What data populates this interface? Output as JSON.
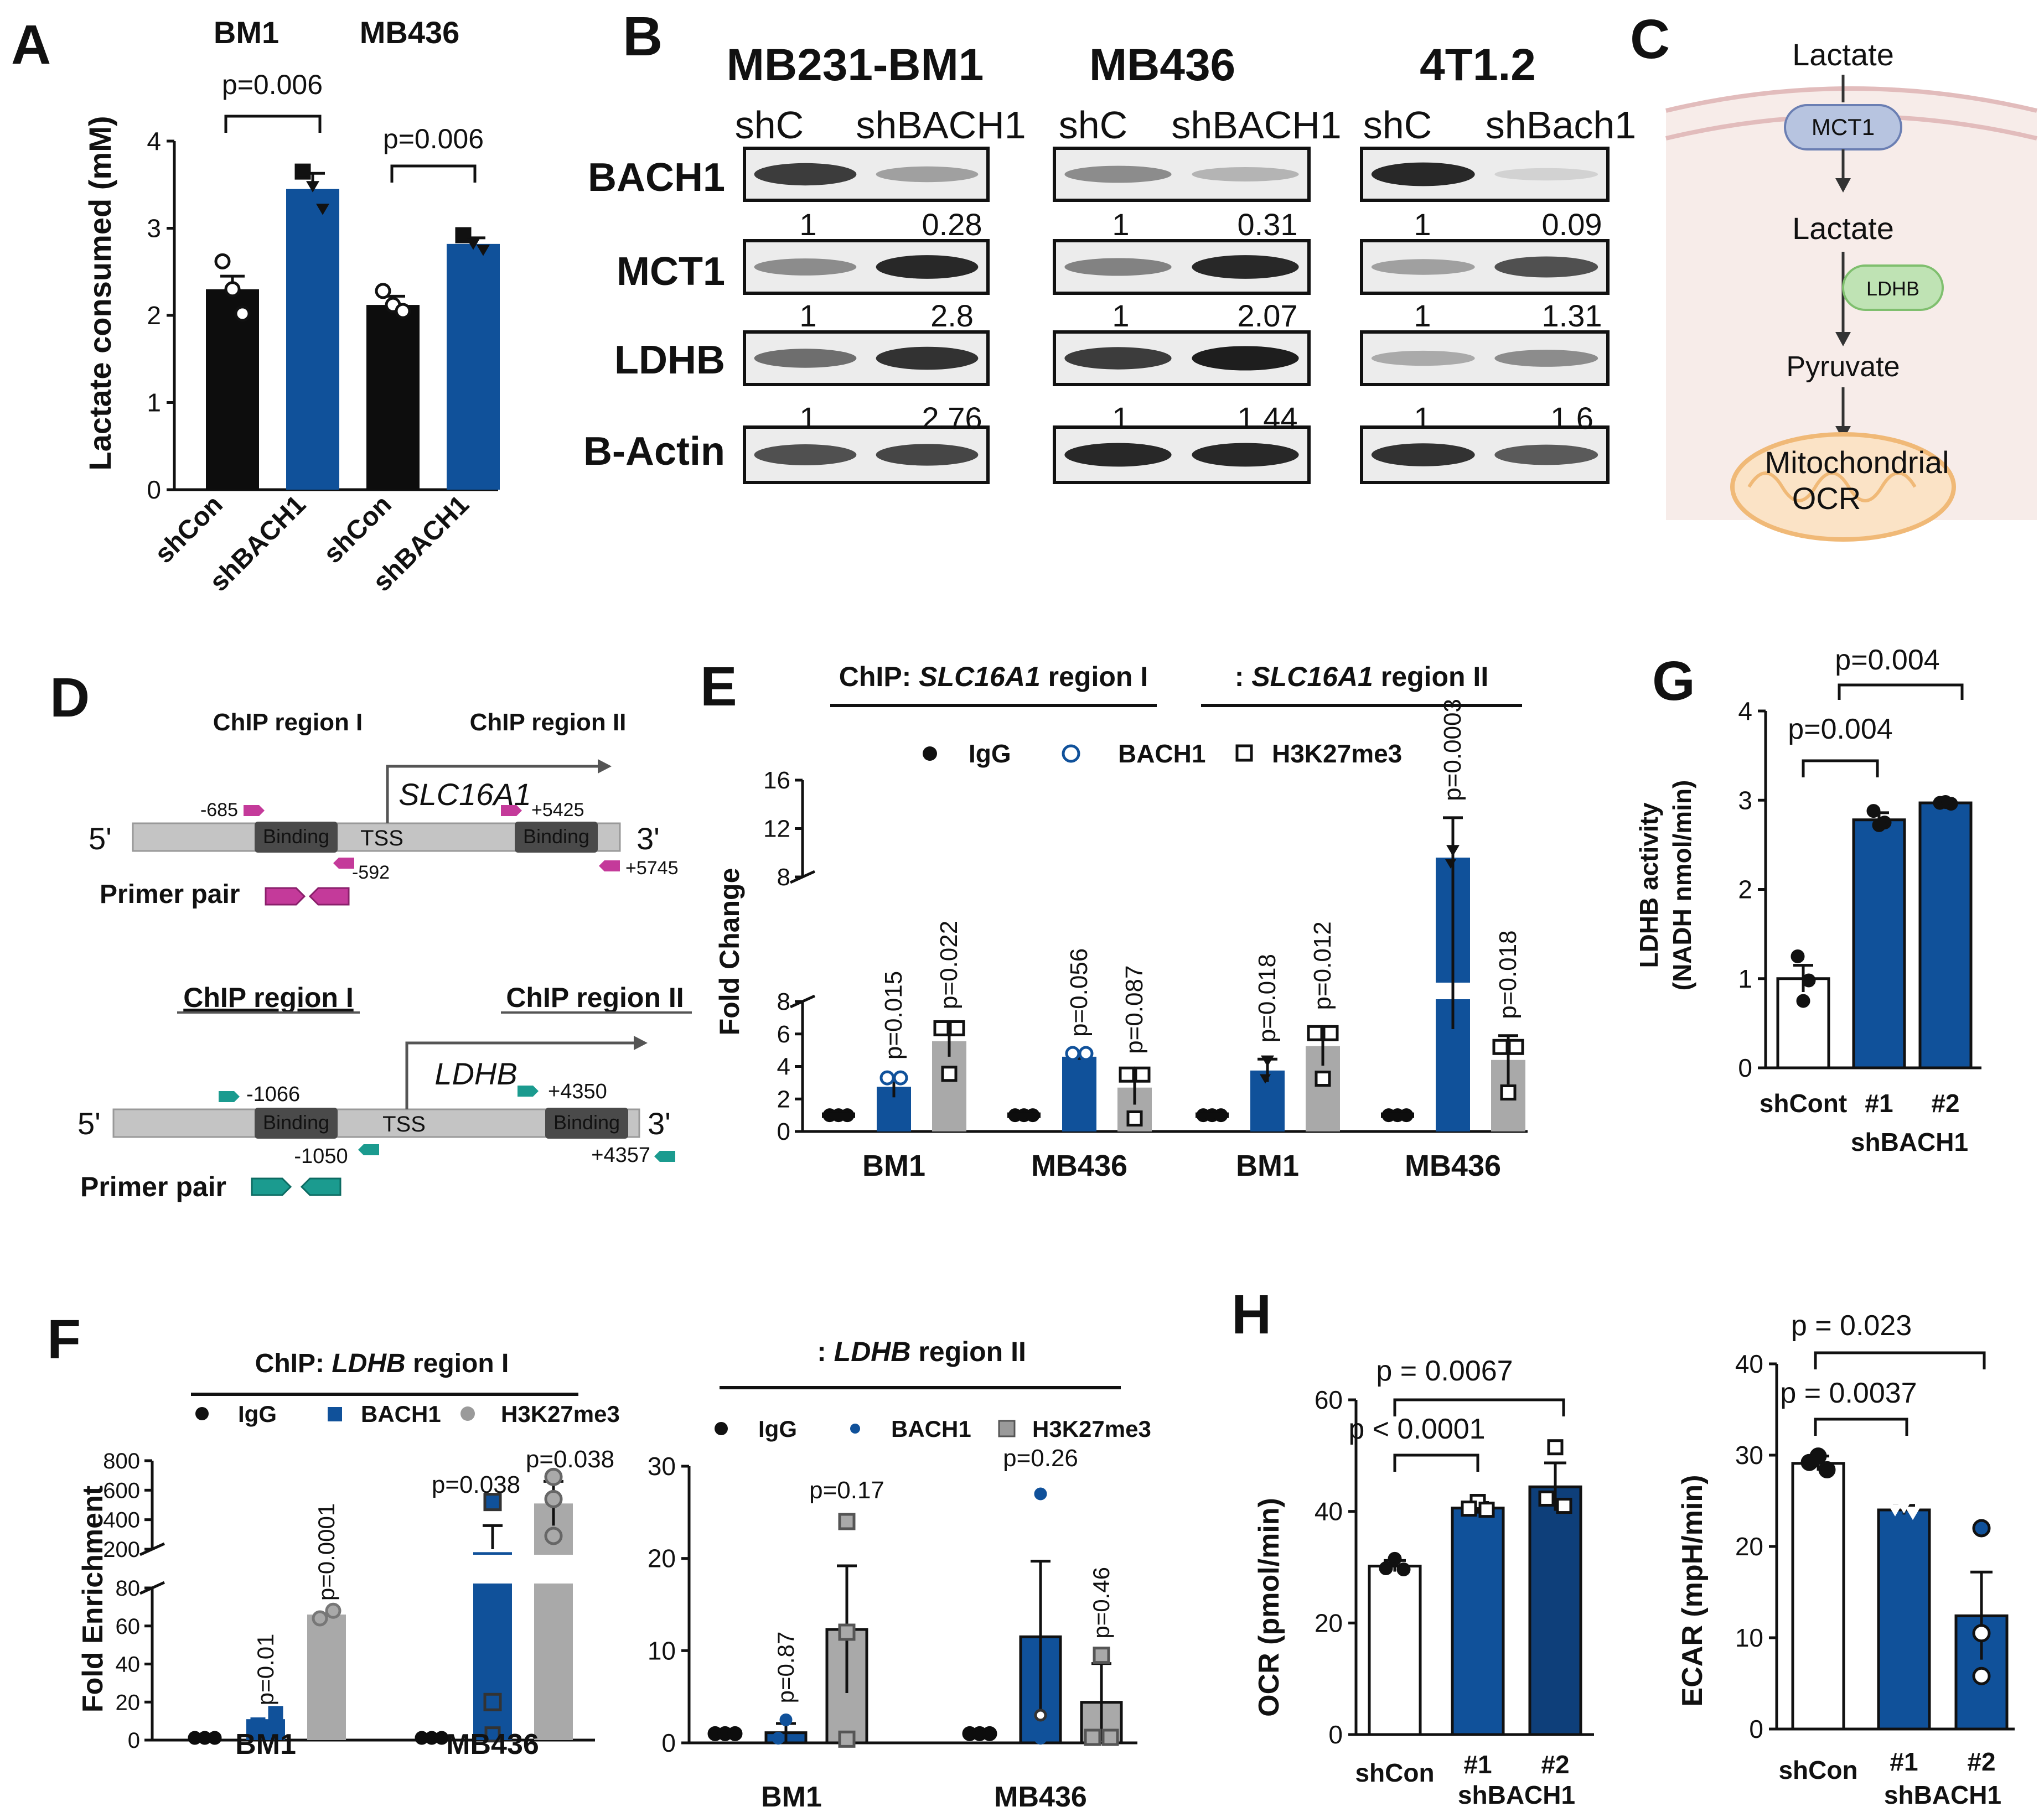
{
  "colors": {
    "black": "#0d0d0d",
    "blue": "#10519a",
    "gray": "#a9a9a9",
    "white": "#ffffff",
    "line": "#111111",
    "magenta": "#c43a9a",
    "teal": "#1b9b8f",
    "mct1": "#b7c4e0",
    "ldhb": "#bfe3b4",
    "membrane": "#e8c9c9",
    "cell": "#f7ece9",
    "mito": "#f0b977"
  },
  "panels": {
    "A": "A",
    "B": "B",
    "C": "C",
    "D": "D",
    "E": "E",
    "F": "F",
    "G": "G",
    "H": "H"
  },
  "chart_data": [
    {
      "id": "A",
      "type": "bar",
      "ylabel": "Lactate consumed (mM)",
      "ylim": [
        0,
        4
      ],
      "yticks": [
        "0",
        "1",
        "2",
        "3",
        "4"
      ],
      "groups": [
        "BM1",
        "MB436"
      ],
      "categories": [
        "shCon",
        "shBACH1",
        "shCon",
        "shBACH1"
      ],
      "values": [
        2.3,
        3.45,
        2.12,
        2.82
      ],
      "errors": [
        0.15,
        0.18,
        0.1,
        0.07
      ],
      "points": [
        [
          2.62,
          2.3,
          2.02
        ],
        [
          3.65,
          3.48,
          3.22
        ],
        [
          2.28,
          2.12,
          2.05
        ],
        [
          2.92,
          2.82,
          2.75
        ]
      ],
      "fills": [
        "black",
        "blue",
        "black",
        "blue"
      ],
      "comparisons": [
        {
          "label": "p=0.006"
        },
        {
          "label": "p=0.006"
        }
      ]
    },
    {
      "id": "E",
      "type": "bar",
      "ylabel": "Fold Change",
      "lower_ticks": [
        "0",
        "2",
        "4",
        "6",
        "8"
      ],
      "upper_ticks": [
        "8",
        "12",
        "16"
      ],
      "header_left": {
        "prefix": "ChIP: ",
        "gene": "SLC16A1",
        "suffix": " region I"
      },
      "header_right": {
        "prefix": ": ",
        "gene": "SLC16A1",
        "suffix": " region II"
      },
      "legend": [
        "IgG",
        "BACH1",
        "H3K27me3"
      ],
      "groups": [
        "BM1",
        "MB436",
        "BM1",
        "MB436"
      ],
      "series": [
        {
          "name": "IgG",
          "values": [
            1,
            1,
            1,
            1
          ],
          "errors": [
            0,
            0,
            0,
            0
          ]
        },
        {
          "name": "BACH1",
          "values": [
            2.75,
            4.6,
            3.75,
            9.6
          ],
          "errors": [
            0.65,
            0.2,
            0.7,
            3.3
          ]
        },
        {
          "name": "H3K27me3",
          "values": [
            5.55,
            2.7,
            5.25,
            4.4
          ],
          "errors": [
            0.95,
            1.05,
            1.2,
            1.5
          ]
        }
      ],
      "pvalues": [
        [
          "p=0.015",
          "p=0.022"
        ],
        [
          "p=0.056",
          "p=0.087"
        ],
        [
          "p=0.018",
          "p=0.012"
        ],
        [
          "p=0.0003",
          "p=0.018"
        ]
      ]
    },
    {
      "id": "F1",
      "type": "bar",
      "ylabel": "Fold Enrichment",
      "lower_ticks": [
        "0",
        "20",
        "40",
        "60",
        "80"
      ],
      "upper_ticks": [
        "200",
        "400",
        "600",
        "800"
      ],
      "header": {
        "prefix": "ChIP: ",
        "gene": "LDHB",
        "suffix": " region I"
      },
      "legend": [
        "IgG",
        "BACH1",
        "H3K27me3"
      ],
      "groups": [
        "BM1",
        "MB436"
      ],
      "series": [
        {
          "name": "IgG",
          "values": [
            1,
            1
          ],
          "errors": [
            0,
            0
          ]
        },
        {
          "name": "BACH1",
          "values": [
            11,
            180
          ],
          "errors": [
            0,
            180
          ]
        },
        {
          "name": "H3K27me3",
          "values": [
            66,
            510
          ],
          "errors": [
            0,
            150
          ]
        }
      ],
      "pvalues": [
        [
          "p=0.01",
          "p=0.0001"
        ],
        [
          "p=0.038",
          "p=0.038"
        ]
      ]
    },
    {
      "id": "F2",
      "type": "bar",
      "ylim": [
        0,
        30
      ],
      "yticks": [
        "0",
        "10",
        "20",
        "30"
      ],
      "header": {
        "prefix": ": ",
        "gene": "LDHB",
        "suffix": " region II"
      },
      "legend": [
        "IgG",
        "BACH1",
        "H3K27me3"
      ],
      "groups": [
        "BM1",
        "MB436"
      ],
      "series": [
        {
          "name": "IgG",
          "values": [
            1,
            1
          ],
          "errors": [
            0,
            0
          ]
        },
        {
          "name": "BACH1",
          "values": [
            1.1,
            11.5
          ],
          "errors": [
            1.0,
            8.2
          ]
        },
        {
          "name": "H3K27me3",
          "values": [
            12.3,
            4.4
          ],
          "errors": [
            6.9,
            4.2
          ]
        }
      ],
      "pvalues": [
        [
          "p=0.87",
          "p=0.17"
        ],
        [
          "p=0.26",
          "p=0.46"
        ]
      ]
    },
    {
      "id": "G",
      "type": "bar",
      "ylabel": "LDHB activity",
      "ylabel2": "(NADH nmol/min)",
      "ylim": [
        0,
        4
      ],
      "yticks": [
        "0",
        "1",
        "2",
        "3",
        "4"
      ],
      "categories": [
        "shCont",
        "#1",
        "#2"
      ],
      "group_label": "shBACH1",
      "values": [
        1.0,
        2.78,
        2.97
      ],
      "errors": [
        0.15,
        0.08,
        0.02
      ],
      "points": [
        [
          1.25,
          0.98,
          0.75
        ],
        [
          2.88,
          2.75,
          2.72
        ],
        [
          2.97,
          2.96,
          2.98
        ]
      ],
      "comparisons": [
        {
          "label": "p=0.004"
        },
        {
          "label": "p=0.004"
        }
      ]
    },
    {
      "id": "H1",
      "type": "bar",
      "ylabel": "OCR (pmol/min)",
      "ylim": [
        0,
        60
      ],
      "yticks": [
        "0",
        "20",
        "40",
        "60"
      ],
      "categories": [
        "shCon",
        "#1",
        "#2"
      ],
      "group_label": "shBACH1",
      "values": [
        30.2,
        40.6,
        44.4
      ],
      "errors": [
        1.0,
        1.0,
        4.3
      ],
      "points": [
        [
          31.5,
          29.8,
          29.6
        ],
        [
          41.7,
          40.5,
          40.3
        ],
        [
          51.5,
          42.3,
          41.0
        ]
      ],
      "comparisons": [
        {
          "label": "p < 0.0001"
        },
        {
          "label": "p = 0.0067"
        }
      ]
    },
    {
      "id": "H2",
      "type": "bar",
      "ylabel": "ECAR (mpH/min)",
      "ylim": [
        0,
        40
      ],
      "yticks": [
        "0",
        "10",
        "20",
        "30",
        "40"
      ],
      "categories": [
        "shCon",
        "#1",
        "#2"
      ],
      "group_label": "shBACH1",
      "values": [
        29.1,
        24.0,
        12.4
      ],
      "errors": [
        0.8,
        0.5,
        4.8
      ],
      "points": [
        [
          29.9,
          29.2,
          28.4
        ],
        [
          24.3,
          24.0,
          23.6
        ],
        [
          22.0,
          10.5,
          5.8
        ]
      ],
      "comparisons": [
        {
          "label": "p = 0.0037"
        },
        {
          "label": "p = 0.023"
        }
      ]
    }
  ],
  "blot": {
    "cell_lines": [
      "MB231-BM1",
      "MB436",
      "4T1.2"
    ],
    "lanes": [
      [
        "shC",
        "shBACH1"
      ],
      [
        "shC",
        "shBACH1"
      ],
      [
        "shC",
        "shBach1"
      ]
    ],
    "proteins": [
      "BACH1",
      "MCT1",
      "LDHB",
      "B-Actin"
    ],
    "quant": [
      [
        [
          "1",
          "0.28"
        ],
        [
          "1",
          "0.31"
        ],
        [
          "1",
          "0.09"
        ]
      ],
      [
        [
          "1",
          "2.8"
        ],
        [
          "1",
          "2.07"
        ],
        [
          "1",
          "1.31"
        ]
      ],
      [
        [
          "1",
          "2.76"
        ],
        [
          "1",
          "1.44"
        ],
        [
          "1",
          "1.6"
        ]
      ]
    ]
  },
  "pathway": {
    "lactate_top": "Lactate",
    "mct1": "MCT1",
    "lactate_mid": "Lactate",
    "ldhb": "LDHB",
    "pyruvate": "Pyruvate",
    "mito1": "Mitochondrial",
    "mito2": "OCR"
  },
  "diagram_d": {
    "slc": {
      "region1": "ChIP region I",
      "region2": "ChIP region II",
      "gene": "SLC16A1",
      "five": "5'",
      "three": "3'",
      "binding1": "Binding",
      "binding2": "Binding",
      "tss": "TSS",
      "pos_a": "-685",
      "pos_b": "-592",
      "pos_c": "+5425",
      "pos_d": "+5745",
      "primer": "Primer pair"
    },
    "ldhb": {
      "region1": "ChIP region I",
      "region2": "ChIP region II",
      "gene": "LDHB",
      "five": "5'",
      "three": "3'",
      "binding1": "Binding",
      "binding2": "Binding",
      "tss": "TSS",
      "pos_a": "-1066",
      "pos_b": "-1050",
      "pos_c": "+4350",
      "pos_d": "+4357",
      "primer": "Primer pair"
    }
  }
}
